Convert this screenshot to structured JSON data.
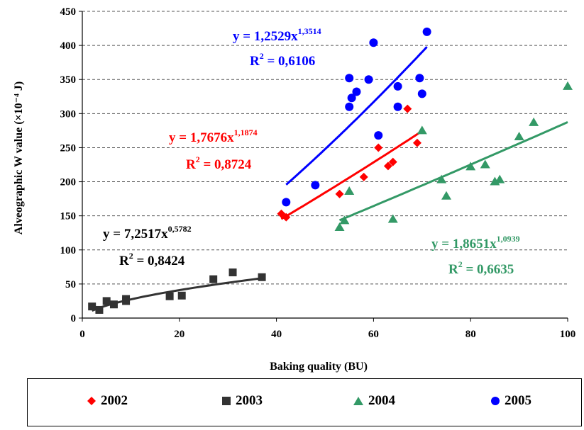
{
  "chart_data": {
    "type": "scatter",
    "title": "",
    "xlabel": "Baking quality (BU)",
    "ylabel": "Alveographic W value (×10⁻⁴ J)",
    "xlim": [
      0,
      100
    ],
    "ylim": [
      0,
      450
    ],
    "xticks": [
      "0",
      "20",
      "40",
      "60",
      "80",
      "100"
    ],
    "yticks": [
      "0",
      "50",
      "100",
      "150",
      "200",
      "250",
      "300",
      "350",
      "400",
      "450"
    ],
    "grid": "horizontal dashed",
    "legend_position": "bottom",
    "series": [
      {
        "name": "2002",
        "color": "#ff0000",
        "marker": "diamond",
        "points": [
          [
            41,
            153
          ],
          [
            42,
            148
          ],
          [
            53,
            182
          ],
          [
            58,
            207
          ],
          [
            61,
            250
          ],
          [
            63,
            223
          ],
          [
            64,
            229
          ],
          [
            67,
            307
          ],
          [
            69,
            257
          ]
        ],
        "trend": {
          "a": 1.7676,
          "b": 1.1874,
          "xmin": 41,
          "xmax": 70
        },
        "equation": "y = 1,7676x",
        "exponent": "1,1874",
        "r2_label": "R",
        "r2_sup": "2",
        "r2_value": " = 0,8724"
      },
      {
        "name": "2003",
        "color": "#333333",
        "marker": "square",
        "points": [
          [
            2,
            17
          ],
          [
            3.5,
            12
          ],
          [
            5,
            25
          ],
          [
            6.5,
            20
          ],
          [
            9,
            28
          ],
          [
            9,
            25
          ],
          [
            18,
            32
          ],
          [
            20.5,
            33
          ],
          [
            27,
            57
          ],
          [
            31,
            67
          ],
          [
            37,
            60
          ]
        ],
        "trend": {
          "a": 7.2517,
          "b": 0.5782,
          "xmin": 2,
          "xmax": 37
        },
        "equation": "y = 7,2517x",
        "exponent": "0,5782",
        "r2_label": "R",
        "r2_sup": "2",
        "r2_value": " = 0,8424"
      },
      {
        "name": "2004",
        "color": "#339966",
        "marker": "triangle",
        "points": [
          [
            53,
            133
          ],
          [
            54,
            143
          ],
          [
            55,
            186
          ],
          [
            64,
            145
          ],
          [
            70,
            275
          ],
          [
            74,
            203
          ],
          [
            75,
            179
          ],
          [
            80,
            222
          ],
          [
            83,
            225
          ],
          [
            85,
            200
          ],
          [
            86,
            203
          ],
          [
            90,
            266
          ],
          [
            93,
            287
          ],
          [
            100,
            340
          ]
        ],
        "trend": {
          "a": 1.8651,
          "b": 1.0939,
          "xmin": 53,
          "xmax": 100
        },
        "equation": "y = 1,8651x",
        "exponent": "1,0939",
        "r2_label": "R",
        "r2_sup": "2",
        "r2_value": " = 0,6635"
      },
      {
        "name": "2005",
        "color": "#0000ff",
        "marker": "circle",
        "points": [
          [
            42,
            170
          ],
          [
            48,
            195
          ],
          [
            55,
            352
          ],
          [
            55,
            310
          ],
          [
            55.5,
            323
          ],
          [
            56.5,
            332
          ],
          [
            59,
            350
          ],
          [
            60,
            404
          ],
          [
            61,
            268
          ],
          [
            65,
            340
          ],
          [
            65,
            310
          ],
          [
            69.5,
            352
          ],
          [
            70,
            329
          ],
          [
            71,
            420
          ]
        ],
        "trend": {
          "a": 1.2529,
          "b": 1.3514,
          "xmin": 42,
          "xmax": 71
        },
        "equation": "y = 1,2529x",
        "exponent": "1,3514",
        "r2_label": "R",
        "r2_sup": "2",
        "r2_value": " = 0,6106"
      }
    ]
  }
}
